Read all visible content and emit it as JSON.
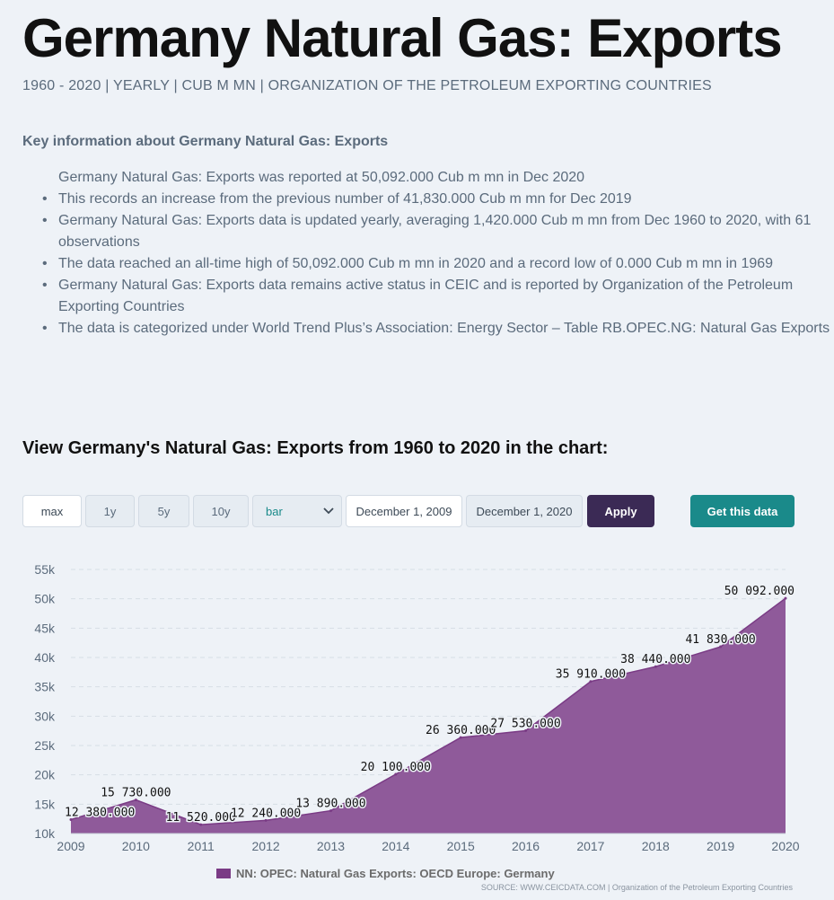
{
  "page": {
    "title": "Germany Natural Gas: Exports",
    "subtitle": "1960 - 2020 | YEARLY | CUB M MN | ORGANIZATION OF THE PETROLEUM EXPORTING COUNTRIES",
    "key_heading": "Key information about Germany Natural Gas: Exports",
    "key_points": [
      "Germany Natural Gas: Exports was reported at 50,092.000 Cub m mn in Dec 2020",
      "This records an increase from the previous number of 41,830.000 Cub m mn for Dec 2019",
      "Germany Natural Gas: Exports data is updated yearly, averaging 1,420.000 Cub m mn from Dec 1960 to 2020, with 61 observations",
      "The data reached an all-time high of 50,092.000 Cub m mn in 2020 and a record low of 0.000 Cub m mn in 1969",
      "Germany Natural Gas: Exports data remains active status in CEIC and is reported by Organization of the Petroleum Exporting Countries",
      "The data is categorized under World Trend Plus’s Association: Energy Sector – Table RB.OPEC.NG: Natural Gas Exports"
    ],
    "chart_heading": "View Germany's Natural Gas: Exports from 1960 to 2020 in the chart:"
  },
  "controls": {
    "range_buttons": [
      "max",
      "1y",
      "5y",
      "10y"
    ],
    "chart_type_selected": "bar",
    "date_from": "December 1, 2009",
    "date_to": "December 1, 2020",
    "apply_label": "Apply",
    "get_data_label": "Get this data"
  },
  "colors": {
    "area_fill": "#8f5a9a",
    "area_stroke": "#7a3b85",
    "apply_button": "#3b2a55",
    "get_data_button": "#1a8a8a"
  },
  "chart_data": {
    "type": "area",
    "x": [
      "2009",
      "2010",
      "2011",
      "2012",
      "2013",
      "2014",
      "2015",
      "2016",
      "2017",
      "2018",
      "2019",
      "2020"
    ],
    "series": [
      {
        "name": "NN: OPEC: Natural Gas Exports: OECD Europe: Germany",
        "values": [
          12380,
          15730,
          11520,
          12240,
          13890,
          20100,
          26360,
          27530,
          35910,
          38440,
          41830,
          50092
        ]
      }
    ],
    "data_labels": [
      "12 380.000",
      "15 730.000",
      "11 520.000",
      "12 240.000",
      "13 890.000",
      "20 100.000",
      "26 360.000",
      "27 530.000",
      "35 910.000",
      "38 440.000",
      "41 830.000",
      "50 092.000"
    ],
    "ylim": [
      10000,
      55000
    ],
    "y_ticks": [
      10000,
      15000,
      20000,
      25000,
      30000,
      35000,
      40000,
      45000,
      50000,
      55000
    ],
    "y_tick_labels": [
      "10k",
      "15k",
      "20k",
      "25k",
      "30k",
      "35k",
      "40k",
      "45k",
      "50k",
      "55k"
    ],
    "grid": true,
    "legend_position": "bottom",
    "source": "SOURCE: WWW.CEICDATA.COM | Organization of the Petroleum Exporting Countries"
  }
}
